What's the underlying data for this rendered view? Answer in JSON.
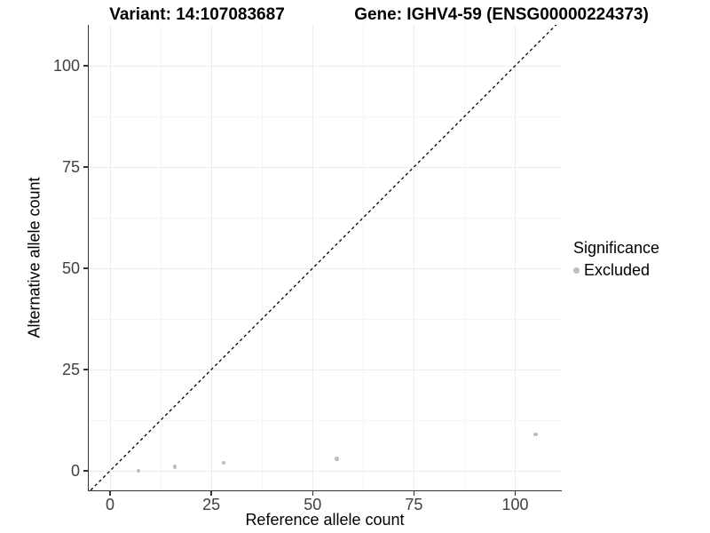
{
  "titles": {
    "variant": "Variant: 14:107083687",
    "gene": "Gene: IGHV4-59 (ENSG00000224373)"
  },
  "legend": {
    "title": "Significance",
    "items": [
      {
        "label": "Excluded",
        "color": "#bebebe"
      }
    ]
  },
  "axes": {
    "x": {
      "label": "Reference allele count",
      "ticks": [
        0,
        25,
        50,
        75,
        100
      ],
      "minor_ticks": [
        12.5,
        37.5,
        62.5,
        87.5
      ]
    },
    "y": {
      "label": "Alternative allele count",
      "ticks": [
        0,
        25,
        50,
        75,
        100
      ],
      "minor_ticks": [
        12.5,
        37.5,
        62.5,
        87.5
      ]
    }
  },
  "chart_data": {
    "type": "scatter",
    "title": "Variant: 14:107083687 — Gene: IGHV4-59 (ENSG00000224373)",
    "xlabel": "Reference allele count",
    "ylabel": "Alternative allele count",
    "xlim": [
      -5,
      111
    ],
    "ylim": [
      -5,
      110
    ],
    "grid": true,
    "legend_position": "right",
    "series": [
      {
        "name": "Excluded",
        "color": "#bebebe",
        "points": [
          {
            "x": 7,
            "y": 0
          },
          {
            "x": 16,
            "y": 1
          },
          {
            "x": 28,
            "y": 2
          },
          {
            "x": 56,
            "y": 3
          },
          {
            "x": 105,
            "y": 9
          }
        ]
      }
    ],
    "reference_line": {
      "type": "identity",
      "slope": 1,
      "intercept": 0,
      "style": "dashed",
      "color": "#000000"
    }
  },
  "colors": {
    "point": "#bebebe",
    "axis_line": "#333333",
    "tick_label": "#404040",
    "grid_major": "#ececec",
    "grid_minor": "#f4f4f4"
  }
}
